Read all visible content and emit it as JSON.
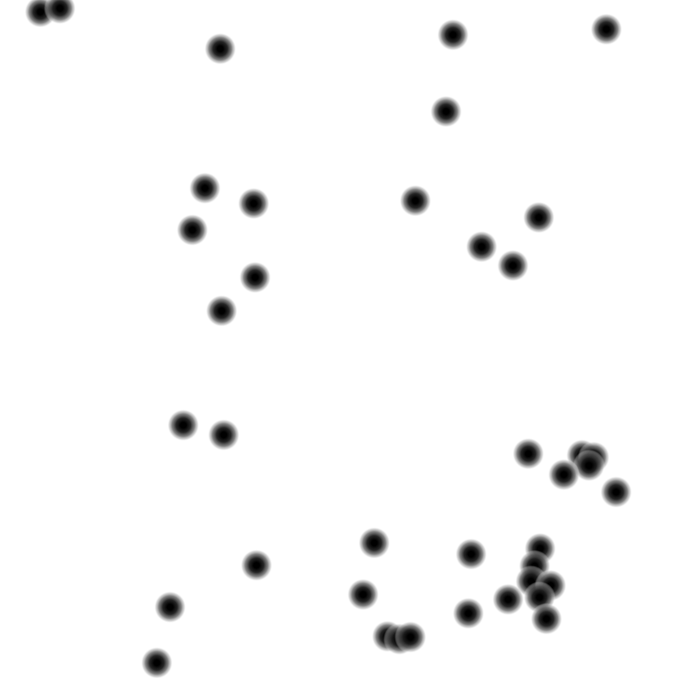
{
  "scene": {
    "background_color": "#ffffff",
    "dot_color": "#000000",
    "dot_count": 50
  }
}
